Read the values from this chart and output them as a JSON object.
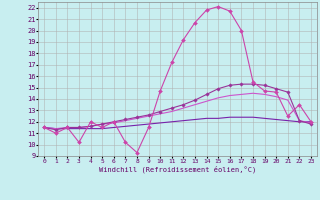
{
  "xlabel": "Windchill (Refroidissement éolien,°C)",
  "background_color": "#c8eef0",
  "grid_color": "#b0b0b0",
  "xlim": [
    -0.5,
    23.5
  ],
  "ylim": [
    9,
    22.5
  ],
  "yticks": [
    9,
    10,
    11,
    12,
    13,
    14,
    15,
    16,
    17,
    18,
    19,
    20,
    21,
    22
  ],
  "xticks": [
    0,
    1,
    2,
    3,
    4,
    5,
    6,
    7,
    8,
    9,
    10,
    11,
    12,
    13,
    14,
    15,
    16,
    17,
    18,
    19,
    20,
    21,
    22,
    23
  ],
  "line1": {
    "x": [
      0,
      1,
      2,
      3,
      4,
      5,
      6,
      7,
      8,
      9,
      10,
      11,
      12,
      13,
      14,
      15,
      16,
      17,
      18,
      19,
      20,
      21,
      22,
      23
    ],
    "y": [
      11.5,
      11.0,
      11.5,
      10.2,
      12.0,
      11.5,
      12.0,
      10.2,
      9.3,
      11.5,
      14.7,
      17.2,
      19.2,
      20.7,
      21.8,
      22.1,
      21.7,
      20.0,
      15.5,
      14.7,
      14.6,
      12.5,
      13.5,
      12.0
    ],
    "color": "#cc44aa",
    "marker": "D",
    "markersize": 2.0,
    "linewidth": 0.8
  },
  "line2": {
    "x": [
      0,
      1,
      2,
      3,
      4,
      5,
      6,
      7,
      8,
      9,
      10,
      11,
      12,
      13,
      14,
      15,
      16,
      17,
      18,
      19,
      20,
      21,
      22,
      23
    ],
    "y": [
      11.5,
      11.3,
      11.5,
      11.5,
      11.6,
      11.8,
      12.0,
      12.2,
      12.4,
      12.6,
      12.9,
      13.2,
      13.5,
      13.9,
      14.4,
      14.9,
      15.2,
      15.3,
      15.3,
      15.2,
      14.9,
      14.6,
      12.1,
      11.8
    ],
    "color": "#993399",
    "marker": "D",
    "markersize": 1.8,
    "linewidth": 0.8
  },
  "line3": {
    "x": [
      0,
      1,
      2,
      3,
      4,
      5,
      6,
      7,
      8,
      9,
      10,
      11,
      12,
      13,
      14,
      15,
      16,
      17,
      18,
      19,
      20,
      21,
      22,
      23
    ],
    "y": [
      11.5,
      11.4,
      11.5,
      11.5,
      11.6,
      11.8,
      11.9,
      12.1,
      12.3,
      12.5,
      12.7,
      12.9,
      13.2,
      13.5,
      13.8,
      14.1,
      14.3,
      14.4,
      14.5,
      14.4,
      14.2,
      13.9,
      12.1,
      11.9
    ],
    "color": "#cc55cc",
    "marker": null,
    "linewidth": 0.8
  },
  "line4": {
    "x": [
      0,
      1,
      2,
      3,
      4,
      5,
      6,
      7,
      8,
      9,
      10,
      11,
      12,
      13,
      14,
      15,
      16,
      17,
      18,
      19,
      20,
      21,
      22,
      23
    ],
    "y": [
      11.5,
      11.4,
      11.4,
      11.4,
      11.4,
      11.4,
      11.5,
      11.6,
      11.7,
      11.8,
      11.9,
      12.0,
      12.1,
      12.2,
      12.3,
      12.3,
      12.4,
      12.4,
      12.4,
      12.3,
      12.2,
      12.1,
      12.0,
      12.0
    ],
    "color": "#7722aa",
    "marker": null,
    "linewidth": 0.8
  }
}
